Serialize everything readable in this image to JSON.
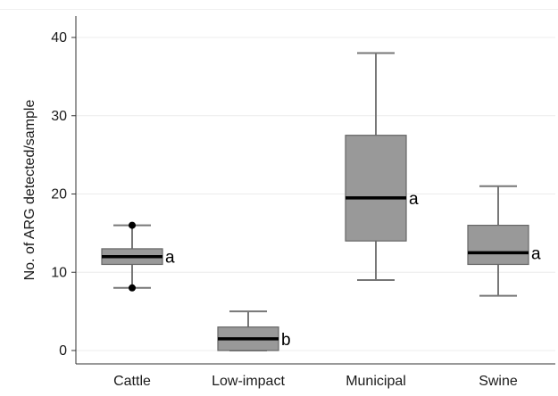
{
  "chart_data": {
    "type": "box",
    "title": "",
    "xlabel": "",
    "ylabel": "No. of ARG detected/sample",
    "ylim": [
      -2,
      42
    ],
    "yticks": [
      0,
      10,
      20,
      30,
      40
    ],
    "grid": true,
    "box_color": "#999999",
    "median_color": "#000000",
    "categories": [
      "Cattle",
      "Low-impact",
      "Municipal",
      "Swine"
    ],
    "boxes": [
      {
        "category": "Cattle",
        "min": 8,
        "q1": 11,
        "median": 12,
        "q3": 13,
        "max": 16,
        "outliers": [
          8,
          16
        ],
        "group_label": "a"
      },
      {
        "category": "Low-impact",
        "min": 0,
        "q1": 0,
        "median": 1.5,
        "q3": 3,
        "max": 5,
        "outliers": [],
        "group_label": "b"
      },
      {
        "category": "Municipal",
        "min": 9,
        "q1": 14,
        "median": 19.5,
        "q3": 27.5,
        "max": 38,
        "outliers": [],
        "group_label": "a"
      },
      {
        "category": "Swine",
        "min": 7,
        "q1": 11,
        "median": 12.5,
        "q3": 16,
        "max": 21,
        "outliers": [],
        "group_label": "a"
      }
    ]
  }
}
